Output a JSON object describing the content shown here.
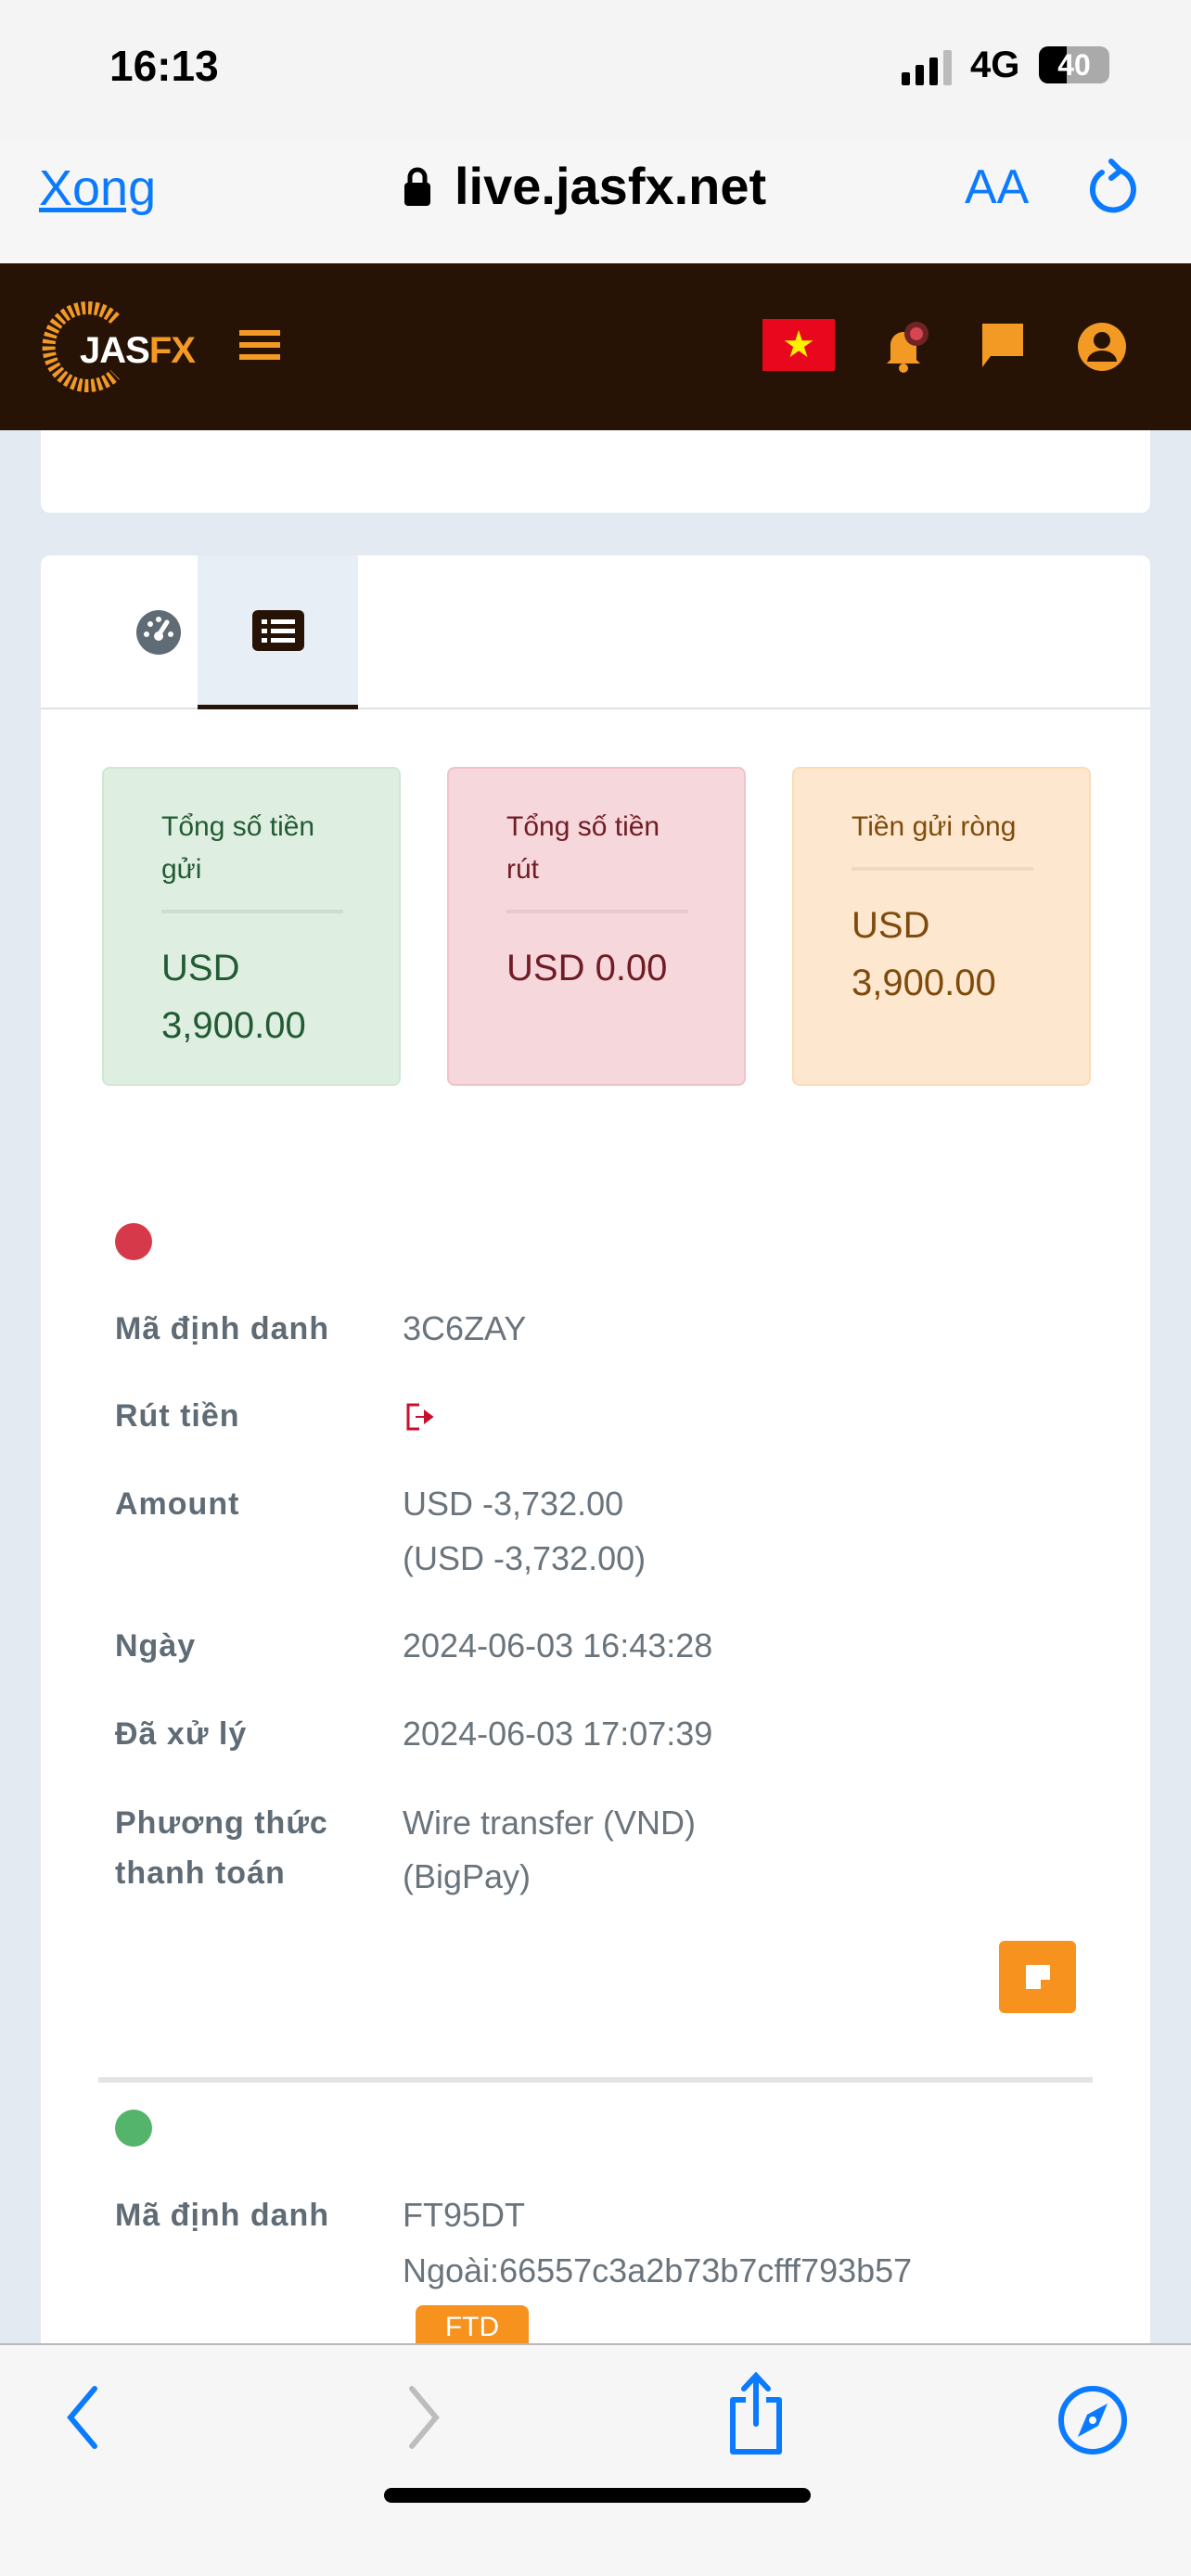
{
  "status_bar": {
    "time": "16:13",
    "network": "4G",
    "battery": "40"
  },
  "browser": {
    "done_label": "Xong",
    "url": "live.jasfx.net",
    "text_size_label": "AA"
  },
  "header": {
    "logo": "JASFX",
    "flag": "vietnam-flag",
    "colors": {
      "bg": "#261305",
      "accent": "#f39a25"
    }
  },
  "tabs": [
    {
      "icon": "dashboard-icon"
    },
    {
      "icon": "list-icon",
      "active": true
    }
  ],
  "summary": [
    {
      "label": "Tổng số tiền gửi",
      "value": "USD 3,900.00"
    },
    {
      "label": "Tổng số tiền rút",
      "value": "USD 0.00"
    },
    {
      "label": "Tiền gửi ròng",
      "value": "USD 3,900.00"
    }
  ],
  "transactions": [
    {
      "status_color": "#d63a4a",
      "id_label": "Mã định danh",
      "id": "3C6ZAY",
      "type_label": "Rút tiền",
      "type_icon": "sign-out-icon",
      "amount_label": "Amount",
      "amount": "USD -3,732.00",
      "amount_converted": "(USD -3,732.00)",
      "date_label": "Ngày",
      "date": "2024-06-03 16:43:28",
      "processed_label": "Đã xử lý",
      "processed": "2024-06-03 17:07:39",
      "method_label": "Phương thức thanh toán",
      "method": "Wire transfer (VND) (BigPay)"
    },
    {
      "status_color": "#55b46b",
      "id_label": "Mã định danh",
      "id": "FT95DT",
      "external": "Ngoài:66557c3a2b73b7cfff793b57",
      "badge": "FTD"
    }
  ]
}
